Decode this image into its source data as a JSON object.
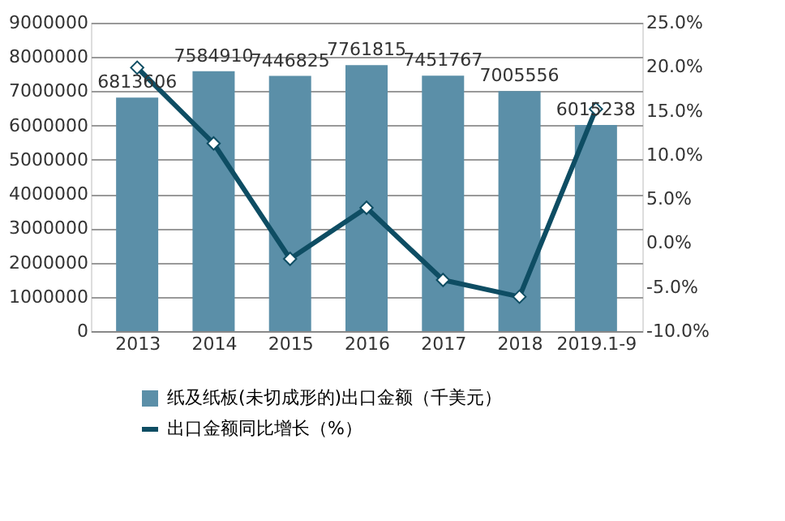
{
  "chart_data": {
    "type": "bar",
    "categories": [
      "2013",
      "2014",
      "2015",
      "2016",
      "2017",
      "2018",
      "2019.1-9"
    ],
    "series": [
      {
        "name": "纸及纸板(未切成形的)出口金额（千美元）",
        "color": "#5b8fa8",
        "values": [
          6813606,
          7584910,
          7446825,
          7761815,
          7451767,
          7005556,
          6015238
        ],
        "value_labels": [
          "6813606",
          "7584910",
          "7446825",
          "7761815",
          "7451767",
          "7005556",
          "6015238"
        ]
      },
      {
        "name": "出口金额同比增长（%）",
        "type": "line",
        "axis": "y2",
        "color": "#0e4d63",
        "marker": "diamond",
        "values": [
          19.9,
          11.3,
          -1.8,
          4.0,
          -4.2,
          -6.1,
          15.2
        ]
      }
    ],
    "ylim": [
      0,
      9000000
    ],
    "yticks": [
      0,
      1000000,
      2000000,
      3000000,
      4000000,
      5000000,
      6000000,
      7000000,
      8000000,
      9000000
    ],
    "y2lim": [
      -10,
      25
    ],
    "y2ticks": [
      {
        "value": -10,
        "label": "-10.0%"
      },
      {
        "value": -5,
        "label": "-5.0%"
      },
      {
        "value": 0,
        "label": "0.0%"
      },
      {
        "value": 5,
        "label": "5.0%"
      },
      {
        "value": 10,
        "label": "10.0%"
      },
      {
        "value": 15,
        "label": "15.0%"
      },
      {
        "value": 20,
        "label": "20.0%"
      },
      {
        "value": 25,
        "label": "25.0%"
      }
    ],
    "grid": "y",
    "legend": "bottom"
  }
}
